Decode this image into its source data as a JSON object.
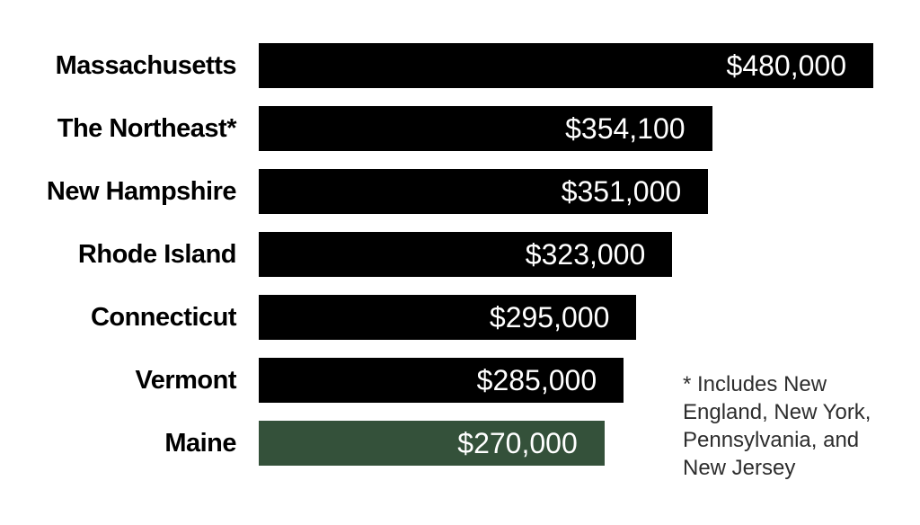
{
  "chart_data": {
    "type": "bar",
    "orientation": "horizontal",
    "categories": [
      "Massachusetts",
      "The Northeast*",
      "New Hampshire",
      "Rhode Island",
      "Connecticut",
      "Vermont",
      "Maine"
    ],
    "values": [
      480000,
      354100,
      351000,
      323000,
      295000,
      285000,
      270000
    ],
    "value_labels": [
      "$480,000",
      "$354,100",
      "$351,000",
      "$323,000",
      "$295,000",
      "$285,000",
      "$270,000"
    ],
    "xlim": [
      0,
      480000
    ],
    "grid": false,
    "legend": false,
    "bar_color_default": "#000000",
    "bar_color_highlight": "#34513A",
    "highlight_index": 6,
    "value_text_color": "#ffffff",
    "label_text_color": "#000000"
  },
  "footnote": {
    "text": "* Includes New England, New York, Pennsylvania, and New Jersey"
  }
}
